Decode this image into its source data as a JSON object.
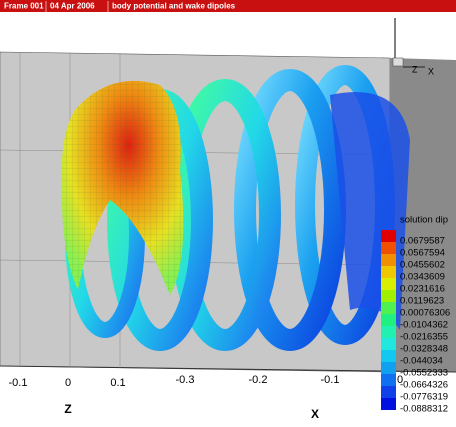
{
  "header": {
    "frame": "Frame 001",
    "date": "04 Apr 2006",
    "title": "body potential and wake dipoles"
  },
  "axes": {
    "z_ticks": [
      "-0.1",
      "0",
      "0.1"
    ],
    "x_ticks": [
      "-0.3",
      "-0.2",
      "-0.1",
      "0"
    ],
    "z_label": "Z",
    "x_label": "X",
    "triad": [
      "Z",
      "X"
    ]
  },
  "legend": {
    "title": "solution dip",
    "labels": [
      "0.0679587",
      "0.0567594",
      "0.0455602",
      "0.0343609",
      "0.0231616",
      "0.0119623",
      "0.00076306",
      "-0.0104362",
      "-0.0216355",
      "-0.0328348",
      "-0.044034",
      "-0.0552333",
      "-0.0664326",
      "-0.0776319",
      "-0.0888312"
    ]
  }
}
